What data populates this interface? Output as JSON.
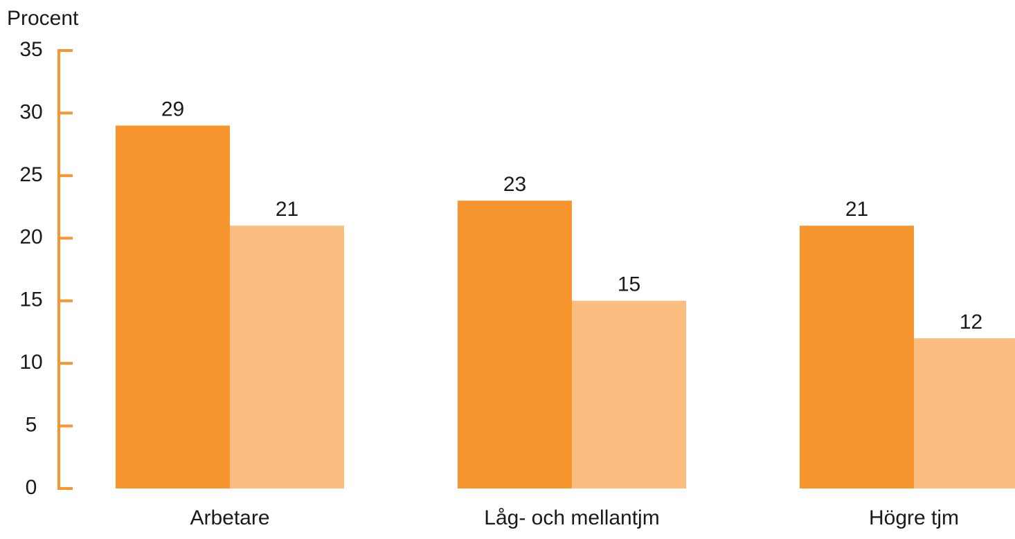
{
  "chart_data": {
    "type": "bar",
    "y_axis_label": "Procent",
    "categories": [
      "Arbetare",
      "Låg- och mellantjm",
      "Högre tjm"
    ],
    "series": [
      {
        "color": "#f7952f",
        "values": [
          29,
          23,
          21
        ]
      },
      {
        "color": "#fbbd80",
        "values": [
          21,
          15,
          12
        ]
      }
    ],
    "ylim": [
      0,
      35
    ],
    "yticks": [
      0,
      5,
      10,
      15,
      20,
      25,
      30,
      35
    ],
    "axis_color": "#f7952f"
  }
}
